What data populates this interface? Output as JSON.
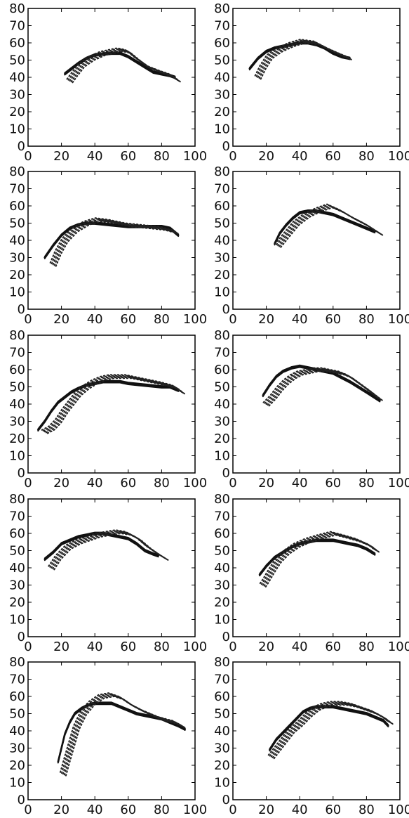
{
  "figure": {
    "background": "#ffffff",
    "line_color": "#111111",
    "dot_color": "#222222"
  },
  "chart_data": [
    {
      "type": "line",
      "xlim": [
        0,
        100
      ],
      "ylim": [
        0,
        80
      ],
      "xticks": [
        0,
        20,
        40,
        60,
        80,
        100
      ],
      "yticks": [
        0,
        10,
        20,
        30,
        40,
        50,
        60,
        70,
        80
      ],
      "grid": false,
      "series": [
        {
          "style": "solid",
          "x": [
            22,
            26,
            30,
            35,
            40,
            50,
            55,
            60,
            65,
            70,
            75,
            80,
            85,
            88
          ],
          "y": [
            42,
            45,
            48,
            51,
            53,
            54,
            54,
            52,
            49,
            46,
            43,
            42,
            41,
            40
          ]
        },
        {
          "style": "dotted",
          "x": [
            25,
            28,
            32,
            38,
            45,
            55,
            60,
            65,
            72,
            80,
            86,
            90
          ],
          "y": [
            38,
            42,
            47,
            51,
            54,
            56,
            55,
            51,
            46,
            43,
            41,
            38
          ]
        }
      ]
    },
    {
      "type": "line",
      "xlim": [
        0,
        100
      ],
      "ylim": [
        0,
        80
      ],
      "xticks": [
        0,
        20,
        40,
        60,
        80,
        100
      ],
      "yticks": [
        0,
        10,
        20,
        30,
        40,
        50,
        60,
        70,
        80
      ],
      "grid": false,
      "series": [
        {
          "style": "solid",
          "x": [
            10,
            15,
            20,
            25,
            30,
            35,
            40,
            45,
            50,
            55,
            60,
            65,
            70
          ],
          "y": [
            45,
            51,
            55,
            57,
            58,
            59,
            60,
            60,
            59,
            57,
            54,
            52,
            51
          ]
        },
        {
          "style": "dotted",
          "x": [
            15,
            18,
            22,
            28,
            35,
            42,
            50,
            58,
            65,
            70
          ],
          "y": [
            40,
            46,
            52,
            56,
            59,
            61,
            60,
            56,
            53,
            51
          ]
        }
      ]
    },
    {
      "type": "line",
      "xlim": [
        0,
        100
      ],
      "ylim": [
        0,
        80
      ],
      "xticks": [
        0,
        20,
        40,
        60,
        80,
        100
      ],
      "yticks": [
        0,
        10,
        20,
        30,
        40,
        50,
        60,
        70,
        80
      ],
      "grid": false,
      "series": [
        {
          "style": "solid",
          "x": [
            10,
            15,
            20,
            25,
            30,
            35,
            40,
            50,
            60,
            70,
            80,
            85,
            90
          ],
          "y": [
            30,
            37,
            43,
            47,
            49,
            50,
            50,
            49,
            48,
            48,
            48,
            47,
            43
          ]
        },
        {
          "style": "dotted",
          "x": [
            15,
            18,
            22,
            28,
            35,
            42,
            50,
            60,
            70,
            80,
            88
          ],
          "y": [
            26,
            33,
            40,
            46,
            50,
            52,
            51,
            49,
            48,
            47,
            45
          ]
        }
      ]
    },
    {
      "type": "line",
      "xlim": [
        0,
        100
      ],
      "ylim": [
        0,
        80
      ],
      "xticks": [
        0,
        20,
        40,
        60,
        80,
        100
      ],
      "yticks": [
        0,
        10,
        20,
        30,
        40,
        50,
        60,
        70,
        80
      ],
      "grid": false,
      "series": [
        {
          "style": "solid",
          "x": [
            25,
            28,
            32,
            36,
            40,
            45,
            50,
            55,
            60,
            65,
            70,
            75,
            80,
            85
          ],
          "y": [
            38,
            44,
            49,
            53,
            56,
            57,
            57,
            56,
            55,
            53,
            51,
            49,
            47,
            45
          ]
        },
        {
          "style": "dotted",
          "x": [
            27,
            32,
            38,
            45,
            52,
            58,
            65,
            72,
            80,
            88
          ],
          "y": [
            37,
            43,
            50,
            55,
            58,
            60,
            57,
            53,
            49,
            44
          ]
        }
      ]
    },
    {
      "type": "line",
      "xlim": [
        0,
        100
      ],
      "ylim": [
        0,
        80
      ],
      "xticks": [
        0,
        20,
        40,
        60,
        80,
        100
      ],
      "yticks": [
        0,
        10,
        20,
        30,
        40,
        50,
        60,
        70,
        80
      ],
      "grid": false,
      "series": [
        {
          "style": "solid",
          "x": [
            6,
            10,
            14,
            18,
            22,
            26,
            30,
            35,
            40,
            45,
            50,
            55,
            60,
            70,
            80,
            85,
            90
          ],
          "y": [
            25,
            30,
            36,
            41,
            44,
            47,
            49,
            51,
            52,
            53,
            53,
            53,
            52,
            51,
            50,
            50,
            48
          ]
        },
        {
          "style": "dotted",
          "x": [
            10,
            14,
            18,
            22,
            26,
            30,
            35,
            40,
            45,
            50,
            55,
            60,
            70,
            80,
            88,
            92
          ],
          "y": [
            24,
            26,
            30,
            36,
            41,
            46,
            50,
            53,
            55,
            56,
            56,
            56,
            54,
            52,
            50,
            47
          ]
        }
      ]
    },
    {
      "type": "line",
      "xlim": [
        0,
        100
      ],
      "ylim": [
        0,
        80
      ],
      "xticks": [
        0,
        20,
        40,
        60,
        80,
        100
      ],
      "yticks": [
        0,
        10,
        20,
        30,
        40,
        50,
        60,
        70,
        80
      ],
      "grid": false,
      "series": [
        {
          "style": "solid",
          "x": [
            18,
            22,
            26,
            30,
            35,
            40,
            45,
            50,
            55,
            60,
            70,
            80,
            88
          ],
          "y": [
            45,
            51,
            56,
            59,
            61,
            62,
            61,
            60,
            59,
            58,
            53,
            47,
            42
          ]
        },
        {
          "style": "dotted",
          "x": [
            20,
            24,
            28,
            32,
            36,
            40,
            45,
            50,
            55,
            60,
            65,
            70,
            80,
            88
          ],
          "y": [
            40,
            44,
            49,
            53,
            56,
            58,
            59,
            60,
            60,
            59,
            58,
            56,
            49,
            43
          ]
        }
      ]
    },
    {
      "type": "line",
      "xlim": [
        0,
        100
      ],
      "ylim": [
        0,
        80
      ],
      "xticks": [
        0,
        20,
        40,
        60,
        80,
        100
      ],
      "yticks": [
        0,
        10,
        20,
        30,
        40,
        50,
        60,
        70,
        80
      ],
      "grid": false,
      "series": [
        {
          "style": "solid",
          "x": [
            10,
            15,
            20,
            25,
            30,
            35,
            40,
            45,
            50,
            55,
            60,
            65,
            70,
            75,
            78
          ],
          "y": [
            45,
            49,
            54,
            56,
            58,
            59,
            60,
            60,
            59,
            58,
            57,
            54,
            50,
            48,
            47
          ]
        },
        {
          "style": "dotted",
          "x": [
            14,
            18,
            24,
            30,
            36,
            42,
            48,
            54,
            60,
            66,
            72,
            78,
            83
          ],
          "y": [
            40,
            46,
            52,
            55,
            57,
            59,
            60,
            61,
            60,
            57,
            52,
            48,
            45
          ]
        }
      ]
    },
    {
      "type": "line",
      "xlim": [
        0,
        100
      ],
      "ylim": [
        0,
        80
      ],
      "xticks": [
        0,
        20,
        40,
        60,
        80,
        100
      ],
      "yticks": [
        0,
        10,
        20,
        30,
        40,
        50,
        60,
        70,
        80
      ],
      "grid": false,
      "series": [
        {
          "style": "solid",
          "x": [
            16,
            20,
            25,
            30,
            35,
            40,
            45,
            50,
            55,
            60,
            65,
            70,
            75,
            80,
            85
          ],
          "y": [
            36,
            41,
            46,
            49,
            52,
            54,
            55,
            56,
            56,
            56,
            55,
            54,
            53,
            51,
            48
          ]
        },
        {
          "style": "dotted",
          "x": [
            18,
            20,
            23,
            27,
            32,
            38,
            45,
            52,
            60,
            68,
            75,
            82,
            86
          ],
          "y": [
            30,
            33,
            38,
            44,
            49,
            53,
            56,
            58,
            60,
            58,
            56,
            53,
            50
          ]
        }
      ]
    },
    {
      "type": "line",
      "xlim": [
        0,
        100
      ],
      "ylim": [
        0,
        80
      ],
      "xticks": [
        0,
        20,
        40,
        60,
        80,
        100
      ],
      "yticks": [
        0,
        10,
        20,
        30,
        40,
        50,
        60,
        70,
        80
      ],
      "grid": false,
      "series": [
        {
          "style": "solid",
          "x": [
            18,
            20,
            22,
            25,
            28,
            32,
            36,
            40,
            45,
            50,
            55,
            60,
            65,
            70,
            75,
            80,
            85,
            90,
            94
          ],
          "y": [
            22,
            30,
            38,
            45,
            50,
            53,
            55,
            56,
            56,
            56,
            54,
            52,
            50,
            49,
            48,
            47,
            45,
            43,
            41
          ]
        },
        {
          "style": "dotted",
          "x": [
            21,
            23,
            26,
            29,
            33,
            38,
            44,
            50,
            56,
            62,
            70,
            80,
            88,
            92
          ],
          "y": [
            15,
            22,
            32,
            42,
            50,
            56,
            60,
            61,
            59,
            55,
            51,
            47,
            45,
            43
          ]
        }
      ]
    },
    {
      "type": "line",
      "xlim": [
        0,
        100
      ],
      "ylim": [
        0,
        80
      ],
      "xticks": [
        0,
        20,
        40,
        60,
        80,
        100
      ],
      "yticks": [
        0,
        10,
        20,
        30,
        40,
        50,
        60,
        70,
        80
      ],
      "grid": false,
      "series": [
        {
          "style": "solid",
          "x": [
            22,
            26,
            30,
            34,
            38,
            42,
            46,
            50,
            55,
            60,
            65,
            70,
            75,
            80,
            85,
            90,
            93
          ],
          "y": [
            29,
            35,
            39,
            43,
            47,
            51,
            53,
            54,
            54,
            54,
            53,
            52,
            51,
            50,
            48,
            46,
            43
          ]
        },
        {
          "style": "dotted",
          "x": [
            23,
            27,
            31,
            35,
            40,
            45,
            50,
            55,
            60,
            66,
            72,
            78,
            84,
            90,
            94
          ],
          "y": [
            25,
            30,
            35,
            40,
            44,
            49,
            53,
            55,
            56,
            56,
            55,
            53,
            51,
            48,
            45
          ]
        }
      ]
    }
  ]
}
